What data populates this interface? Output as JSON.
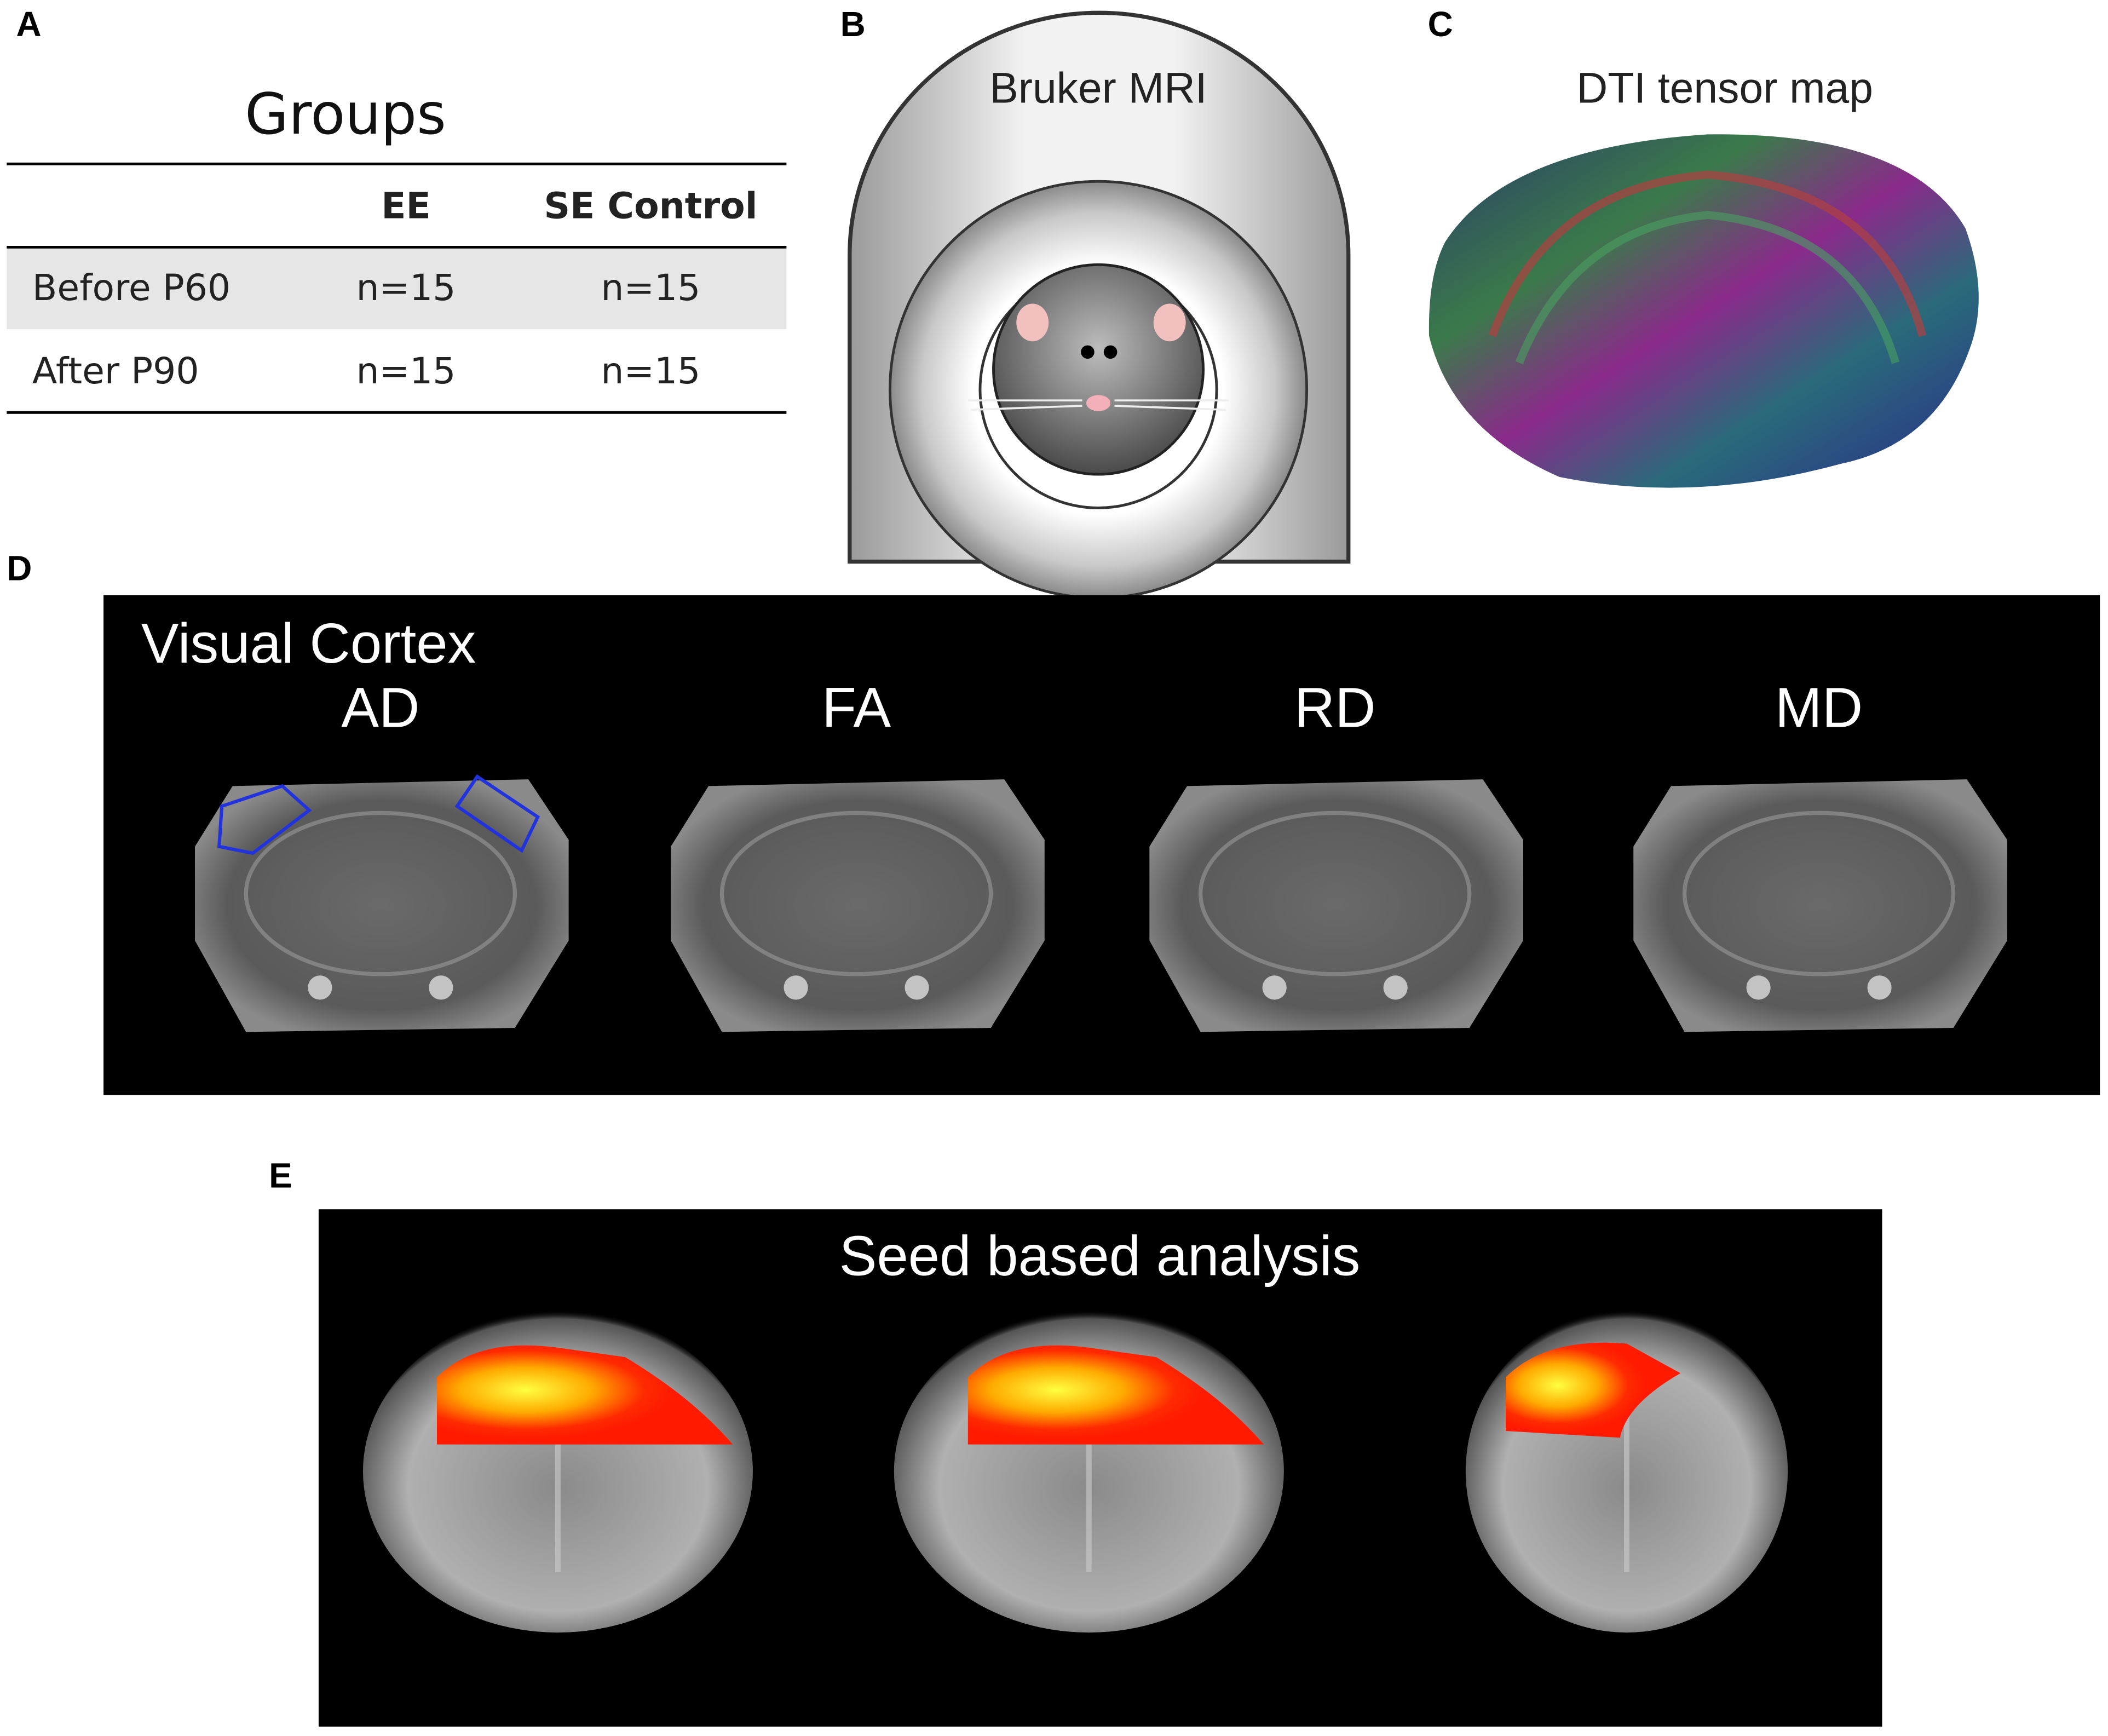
{
  "panel_labels": [
    "A",
    "B",
    "C",
    "D",
    "E"
  ],
  "table": {
    "title": "Groups",
    "columns": [
      "EE",
      "SE Control"
    ],
    "rows": [
      [
        "Before P60",
        "n=15",
        "n=15"
      ],
      [
        "After P90",
        "n=15",
        "n=15"
      ]
    ]
  },
  "scanner": {
    "label": "Bruker MRI"
  },
  "tensor_map": {
    "title": "DTI tensor map"
  },
  "dti": {
    "region": "Visual Cortex",
    "maps": [
      "AD",
      "FA",
      "RD",
      "MD"
    ]
  },
  "seed": {
    "title": "Seed based analysis"
  }
}
